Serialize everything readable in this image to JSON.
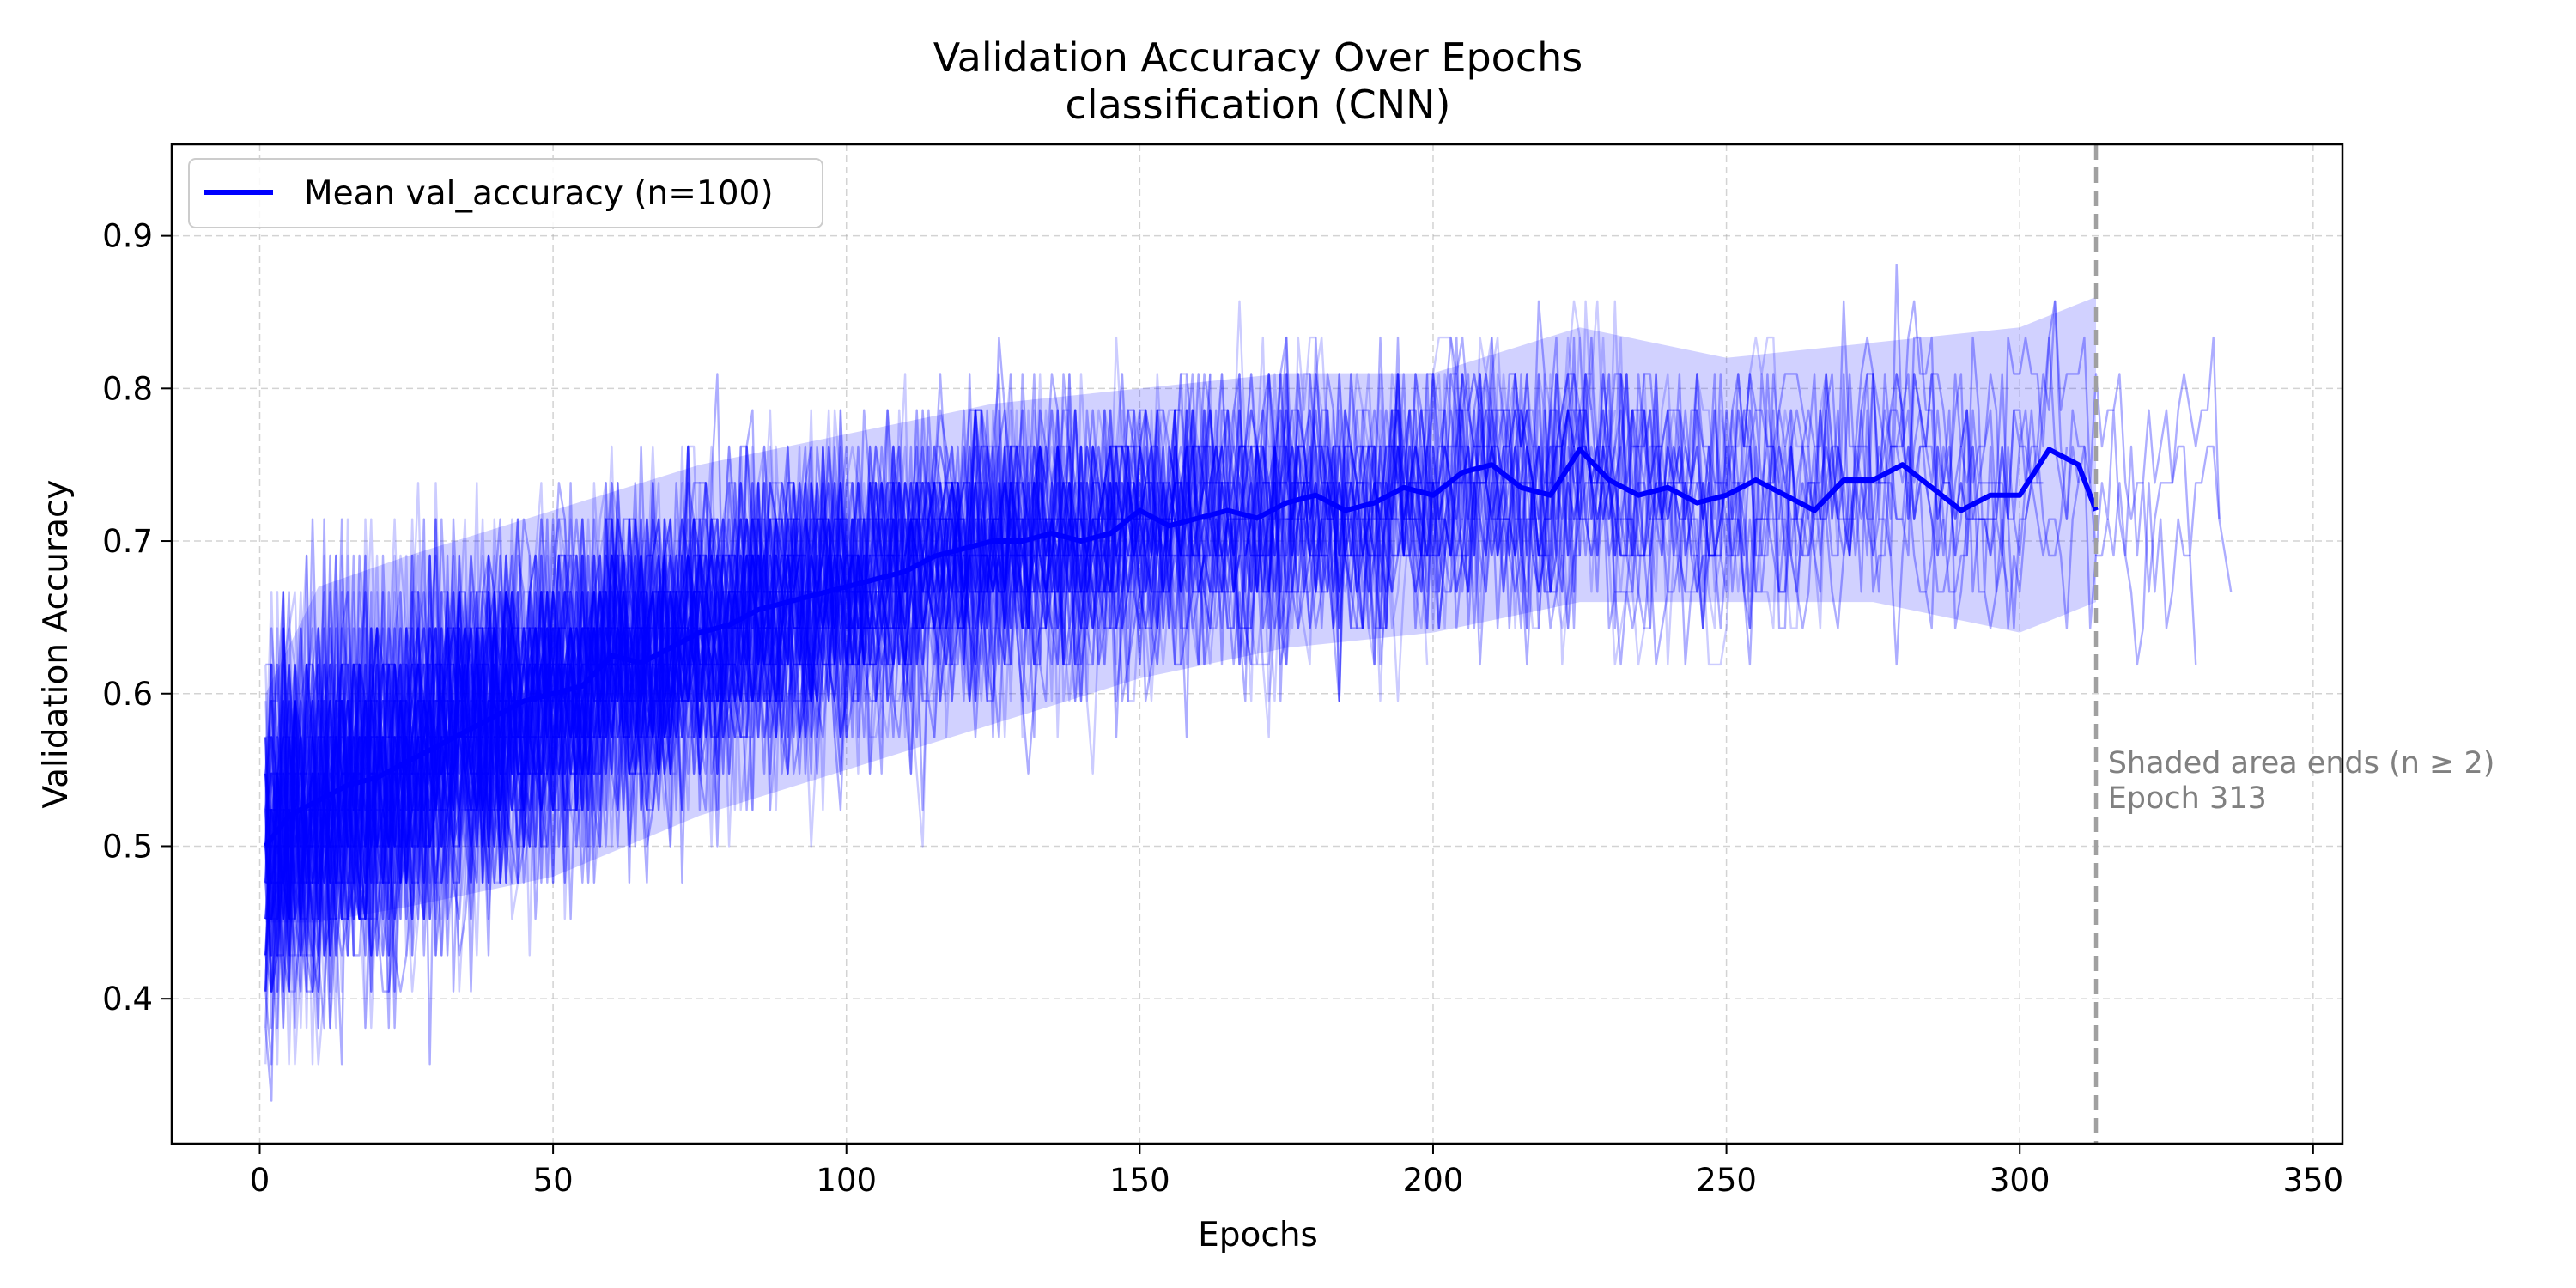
{
  "chart_data": {
    "type": "line",
    "title": "Validation Accuracy Over Epochs",
    "subtitle": "classification (CNN)",
    "xlabel": "Epochs",
    "ylabel": "Validation Accuracy",
    "xlim": [
      -15,
      355
    ],
    "ylim": [
      0.305,
      0.96
    ],
    "xticks": [
      0,
      50,
      100,
      150,
      200,
      250,
      300,
      350
    ],
    "yticks": [
      0.4,
      0.5,
      0.6,
      0.7,
      0.8,
      0.9
    ],
    "xtick_labels": [
      "0",
      "50",
      "100",
      "150",
      "200",
      "250",
      "300",
      "350"
    ],
    "ytick_labels": [
      "0.4",
      "0.5",
      "0.6",
      "0.7",
      "0.8",
      "0.9"
    ],
    "grid": true,
    "legend": {
      "position": "top-left",
      "entries": [
        "Mean val_accuracy (n=100)"
      ]
    },
    "colors": {
      "series": "#0000ff",
      "band": "#0000ff",
      "marker_line": "#a0a0a0",
      "annotation": "#808080"
    },
    "series": [
      {
        "name": "Mean val_accuracy (n=100)",
        "x": [
          1,
          5,
          10,
          15,
          20,
          25,
          30,
          35,
          40,
          45,
          50,
          55,
          60,
          65,
          70,
          75,
          80,
          85,
          90,
          95,
          100,
          105,
          110,
          115,
          120,
          125,
          130,
          135,
          140,
          145,
          150,
          155,
          160,
          165,
          170,
          175,
          180,
          185,
          190,
          195,
          200,
          205,
          210,
          215,
          220,
          225,
          230,
          235,
          240,
          245,
          250,
          255,
          260,
          265,
          270,
          275,
          280,
          285,
          290,
          295,
          300,
          305,
          310,
          313
        ],
        "y": [
          0.5,
          0.52,
          0.53,
          0.54,
          0.545,
          0.555,
          0.565,
          0.575,
          0.585,
          0.595,
          0.6,
          0.605,
          0.625,
          0.62,
          0.63,
          0.64,
          0.645,
          0.655,
          0.66,
          0.665,
          0.67,
          0.675,
          0.68,
          0.69,
          0.695,
          0.7,
          0.7,
          0.705,
          0.7,
          0.705,
          0.72,
          0.71,
          0.715,
          0.72,
          0.715,
          0.725,
          0.73,
          0.72,
          0.725,
          0.735,
          0.73,
          0.745,
          0.75,
          0.735,
          0.73,
          0.76,
          0.74,
          0.73,
          0.735,
          0.725,
          0.73,
          0.74,
          0.73,
          0.72,
          0.74,
          0.74,
          0.75,
          0.735,
          0.72,
          0.73,
          0.73,
          0.76,
          0.75,
          0.72
        ]
      }
    ],
    "band": {
      "x": [
        1,
        10,
        25,
        50,
        75,
        100,
        125,
        150,
        175,
        200,
        225,
        250,
        275,
        300,
        313
      ],
      "upper": [
        0.6,
        0.67,
        0.69,
        0.72,
        0.75,
        0.77,
        0.79,
        0.8,
        0.81,
        0.81,
        0.84,
        0.82,
        0.83,
        0.84,
        0.86
      ],
      "lower": [
        0.45,
        0.45,
        0.46,
        0.48,
        0.52,
        0.55,
        0.58,
        0.61,
        0.63,
        0.64,
        0.66,
        0.66,
        0.66,
        0.64,
        0.66
      ]
    },
    "vline": {
      "x": 313
    },
    "annotation": {
      "lines": [
        "Shaded area ends (n ≥ 2)",
        "Epoch 313"
      ],
      "x": 315,
      "y": [
        0.548,
        0.525
      ]
    }
  }
}
